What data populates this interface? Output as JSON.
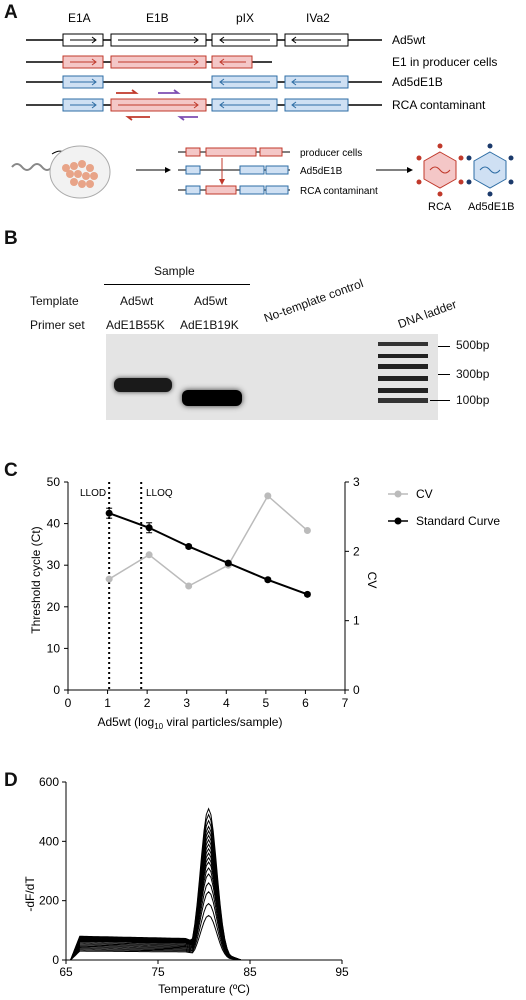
{
  "panelA": {
    "letter": "A",
    "genes": [
      "E1A",
      "E1B",
      "pIX",
      "IVa2"
    ],
    "constructs": [
      "Ad5wt",
      "E1 in producer cells",
      "Ad5dE1B",
      "RCA contaminant"
    ],
    "schematic_labels": [
      "producer cells",
      "Ad5dE1B",
      "RCA contaminant"
    ],
    "virions": [
      "RCA",
      "Ad5dE1B"
    ],
    "colors": {
      "e1_fill": "#f4c7c7",
      "e1_stroke": "#c0392b",
      "ad5_fill": "#cfe0f3",
      "ad5_stroke": "#2e6da4",
      "primer_red": "#c0392b",
      "primer_purple": "#7d4fb3"
    }
  },
  "panelB": {
    "letter": "B",
    "sample_header": "Sample",
    "row_template_label": "Template",
    "row_primer_label": "Primer set",
    "lanes": [
      {
        "template": "Ad5wt",
        "primer": "AdE1B55K"
      },
      {
        "template": "Ad5wt",
        "primer": "AdE1B19K"
      }
    ],
    "ntc_label": "No-template control",
    "ladder_label": "DNA ladder",
    "markers": [
      "500bp",
      "300bp",
      "100bp"
    ]
  },
  "panelC": {
    "letter": "C",
    "legend": [
      "CV",
      "Standard Curve"
    ],
    "lines": [
      "LLOD",
      "LLOQ"
    ],
    "chart_data": {
      "type": "line",
      "xlabel_main": "Ad5wt (log",
      "xlabel_sub": "10",
      "xlabel_rest": " viral particles/sample)",
      "ylabel_left": "Threshold cycle (Ct)",
      "ylabel_right": "CV",
      "xlim": [
        0,
        7
      ],
      "ylim_left": [
        0,
        50
      ],
      "ylim_right": [
        0,
        3
      ],
      "xticks": [
        "0",
        "1",
        "2",
        "3",
        "4",
        "5",
        "6",
        "7"
      ],
      "yticks_left": [
        "0",
        "10",
        "20",
        "30",
        "40",
        "50"
      ],
      "yticks_right": [
        "0",
        "1",
        "2",
        "3"
      ],
      "vlines": [
        1.04,
        1.85
      ],
      "series": [
        {
          "name": "CV",
          "axis": "right",
          "color": "#bbbbbb",
          "x": [
            1.04,
            2.05,
            3.05,
            4.05,
            5.05,
            6.05
          ],
          "y": [
            1.6,
            1.95,
            1.5,
            1.8,
            2.8,
            2.3
          ]
        },
        {
          "name": "Standard Curve",
          "axis": "left",
          "color": "#000000",
          "x": [
            1.04,
            2.05,
            3.05,
            4.05,
            5.05,
            6.05
          ],
          "y": [
            42.5,
            39,
            34.5,
            30.5,
            26.5,
            23
          ],
          "err": [
            1.2,
            1.2,
            0.4,
            0.4,
            0.4,
            0.4
          ]
        }
      ]
    }
  },
  "panelD": {
    "letter": "D",
    "chart_data": {
      "type": "line",
      "xlabel": "Temperature (ºC)",
      "ylabel": "-dF/dT",
      "xlim": [
        65,
        95
      ],
      "ylim": [
        0,
        600
      ],
      "xticks": [
        "65",
        "75",
        "85",
        "95"
      ],
      "yticks": [
        "0",
        "200",
        "400",
        "600"
      ],
      "peak_temp": 80.5,
      "curve_baselines": [
        30,
        34,
        38,
        42,
        46,
        50,
        54,
        58,
        62,
        64,
        66,
        68,
        70,
        72,
        74,
        76,
        78,
        80
      ],
      "curve_peaks": [
        150,
        190,
        230,
        260,
        290,
        310,
        330,
        345,
        360,
        375,
        390,
        405,
        420,
        435,
        450,
        470,
        490,
        510
      ]
    }
  }
}
